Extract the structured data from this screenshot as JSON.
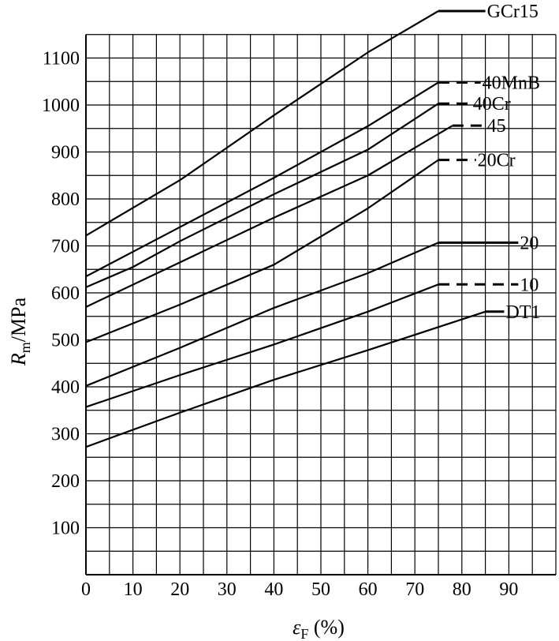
{
  "chart_data": {
    "type": "line",
    "title": "",
    "xlabel": {
      "main": "ε",
      "sub": "F",
      "unit": " (%)"
    },
    "ylabel": {
      "main": "R",
      "sub": "m",
      "unit": "/MPa"
    },
    "xlim": [
      0,
      100
    ],
    "ylim": [
      0,
      1200
    ],
    "x_ticks": [
      0,
      10,
      20,
      30,
      40,
      50,
      60,
      70,
      80,
      90
    ],
    "y_ticks": [
      100,
      200,
      300,
      400,
      500,
      600,
      700,
      800,
      900,
      1000,
      1100
    ],
    "grid": true,
    "grid_x_step": 5,
    "grid_y_step": 50,
    "color": "#000000",
    "series": [
      {
        "name": "GCr15",
        "points": [
          [
            0,
            722
          ],
          [
            20,
            840
          ],
          [
            40,
            978
          ],
          [
            60,
            1112
          ],
          [
            75,
            1200
          ]
        ],
        "flat_end": 85,
        "flat_style": "solid"
      },
      {
        "name": "40MnB",
        "points": [
          [
            0,
            635
          ],
          [
            20,
            740
          ],
          [
            40,
            845
          ],
          [
            60,
            955
          ],
          [
            75,
            1048
          ]
        ],
        "flat_end": 84,
        "flat_style": "dashed"
      },
      {
        "name": "40Cr",
        "points": [
          [
            0,
            612
          ],
          [
            10,
            655
          ],
          [
            20,
            710
          ],
          [
            40,
            810
          ],
          [
            60,
            905
          ],
          [
            75,
            1003
          ]
        ],
        "flat_end": 82,
        "flat_style": "dashed"
      },
      {
        "name": "45",
        "points": [
          [
            0,
            570
          ],
          [
            20,
            665
          ],
          [
            40,
            760
          ],
          [
            60,
            850
          ],
          [
            78,
            956
          ]
        ],
        "flat_end": 85,
        "flat_style": "dashed"
      },
      {
        "name": "20Cr",
        "points": [
          [
            0,
            495
          ],
          [
            20,
            575
          ],
          [
            40,
            660
          ],
          [
            60,
            780
          ],
          [
            75,
            883
          ]
        ],
        "flat_end": 83,
        "flat_style": "dashed"
      },
      {
        "name": "20",
        "points": [
          [
            0,
            402
          ],
          [
            20,
            483
          ],
          [
            40,
            568
          ],
          [
            60,
            642
          ],
          [
            75,
            707
          ]
        ],
        "flat_end": 92,
        "flat_style": "solid"
      },
      {
        "name": "10",
        "points": [
          [
            0,
            357
          ],
          [
            20,
            425
          ],
          [
            40,
            490
          ],
          [
            60,
            560
          ],
          [
            75,
            618
          ]
        ],
        "flat_end": 92,
        "flat_style": "dashed"
      },
      {
        "name": "DT1",
        "points": [
          [
            0,
            272
          ],
          [
            20,
            345
          ],
          [
            40,
            415
          ],
          [
            60,
            478
          ],
          [
            85,
            560
          ]
        ],
        "flat_end": 89,
        "flat_style": "solid"
      }
    ]
  }
}
